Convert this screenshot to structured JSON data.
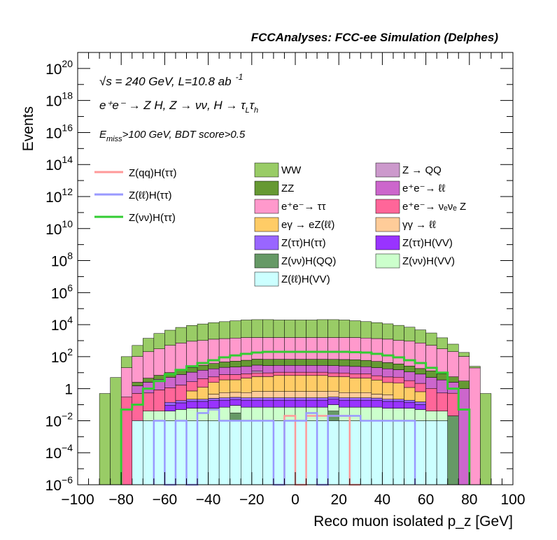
{
  "chart_data": {
    "type": "bar",
    "title": "FCCAnalyses: FCC-ee Simulation (Delphes)",
    "xlabel": "Reco muon isolated p_z [GeV]",
    "ylabel": "Events",
    "xlim": [
      -100,
      100
    ],
    "ylim": [
      1e-06,
      1e+21
    ],
    "log_y": true,
    "grid": false,
    "x_ticks": [
      -100,
      -80,
      -60,
      -40,
      -20,
      0,
      20,
      40,
      60,
      80,
      100
    ],
    "x_tick_labels": [
      "−100",
      "−80",
      "−60",
      "−40",
      "−20",
      "0",
      "20",
      "40",
      "60",
      "80",
      "100"
    ],
    "y_ticks": [
      {
        "value": 1e-06,
        "base": "10",
        "exp": "−6"
      },
      {
        "value": 0.0001,
        "base": "10",
        "exp": "−4"
      },
      {
        "value": 0.01,
        "base": "10",
        "exp": "−2"
      },
      {
        "value": 1,
        "base": "1",
        "exp": ""
      },
      {
        "value": 100.0,
        "base": "10",
        "exp": "2"
      },
      {
        "value": 10000.0,
        "base": "10",
        "exp": "4"
      },
      {
        "value": 1000000.0,
        "base": "10",
        "exp": "6"
      },
      {
        "value": 100000000.0,
        "base": "10",
        "exp": "8"
      },
      {
        "value": 10000000000.0,
        "base": "10",
        "exp": "10"
      },
      {
        "value": 1000000000000.0,
        "base": "10",
        "exp": "12"
      },
      {
        "value": 100000000000000.0,
        "base": "10",
        "exp": "14"
      },
      {
        "value": 1e+16,
        "base": "10",
        "exp": "16"
      },
      {
        "value": 1e+18,
        "base": "10",
        "exp": "18"
      },
      {
        "value": 1e+20,
        "base": "10",
        "exp": "20"
      }
    ],
    "annotations": {
      "line1": "√s = 240 GeV, L=10.8 ab",
      "line1_sup": "-1",
      "line2": "e⁺e⁻ → Z H, Z → νν, H → τ",
      "line2_sub1": "L",
      "line2_mid": "τ",
      "line2_sub2": "h",
      "line3": "E",
      "line3_sub": "miss",
      "line3_rest": ">100 GeV, BDT score>0.5"
    },
    "bin_edges": [
      -90,
      -85,
      -80,
      -75,
      -70,
      -65,
      -60,
      -55,
      -50,
      -45,
      -40,
      -35,
      -30,
      -25,
      -20,
      -15,
      -10,
      -5,
      0,
      5,
      10,
      15,
      20,
      25,
      30,
      35,
      40,
      45,
      50,
      55,
      60,
      65,
      70,
      75,
      80,
      85,
      90
    ],
    "stack": [
      {
        "name": "Z(ℓℓ)H(VV)",
        "color": "#ccffff",
        "values": [
          0,
          0,
          0,
          0.01,
          0.01,
          0.01,
          0.01,
          0.01,
          0.01,
          0.01,
          0.01,
          0.01,
          0.01,
          0.01,
          0.01,
          0.01,
          0.01,
          0.01,
          0.01,
          0.01,
          0.01,
          0.01,
          0.01,
          0.01,
          0.01,
          0.01,
          0.01,
          0.01,
          0.01,
          0.01,
          0.01,
          0.01,
          0,
          0,
          0,
          0
        ]
      },
      {
        "name": "Z(νν)H(QQ)",
        "color": "#669966",
        "values": [
          0,
          0,
          0,
          0,
          0,
          0,
          0,
          0,
          0,
          0,
          0,
          0,
          0.02,
          0,
          0,
          0,
          0,
          0,
          0,
          0,
          0,
          0.03,
          0,
          0,
          0,
          0,
          0,
          0,
          0,
          0,
          0,
          0,
          0.02,
          0,
          0,
          0
        ]
      },
      {
        "name": "Z(νν)H(VV)",
        "color": "#ccffcc",
        "values": [
          0,
          0,
          0,
          0,
          0.03,
          0.03,
          0.03,
          0.04,
          0.05,
          0.05,
          0.05,
          0.06,
          0.06,
          0.06,
          0.06,
          0.06,
          0.06,
          0.06,
          0.06,
          0.06,
          0.06,
          0.06,
          0.06,
          0.06,
          0.06,
          0.06,
          0.05,
          0.05,
          0.05,
          0.04,
          0.03,
          0.03,
          0,
          0,
          0,
          0
        ]
      },
      {
        "name": "Z(ττ)H(VV)",
        "color": "#9933ff",
        "values": [
          0,
          0,
          0,
          0,
          0,
          0,
          0.05,
          0.08,
          0.1,
          0.1,
          0.12,
          0.12,
          0.12,
          0.12,
          0.12,
          0.12,
          0.12,
          0.12,
          0.12,
          0.12,
          0.12,
          0.12,
          0.12,
          0.12,
          0.12,
          0.12,
          0.1,
          0.1,
          0.08,
          0.05,
          0,
          0,
          0,
          0,
          0,
          0
        ]
      },
      {
        "name": "Z(ττ)H(ττ)",
        "color": "#9966ff",
        "values": [
          0,
          0,
          0,
          0,
          0,
          0,
          0.05,
          0.05,
          0.06,
          0.06,
          0.07,
          0.08,
          0.08,
          0.08,
          0.08,
          0.08,
          0.08,
          0.08,
          0.08,
          0.08,
          0.08,
          0.08,
          0.08,
          0.08,
          0.08,
          0.07,
          0.06,
          0.06,
          0.05,
          0.05,
          0,
          0,
          0,
          0,
          0,
          0
        ]
      },
      {
        "name": "γγ → ℓℓ",
        "color": "#ffcc99",
        "values": [
          0,
          0,
          0,
          0,
          0,
          0,
          0,
          0,
          0,
          0,
          0.2,
          0.3,
          0.3,
          0.3,
          0.4,
          0.4,
          0.4,
          0.4,
          0.4,
          0.4,
          0.4,
          0.4,
          0.3,
          0.3,
          0.3,
          0.2,
          0.2,
          0,
          0,
          0,
          0,
          0,
          0,
          0,
          0,
          0
        ]
      },
      {
        "name": "eγ → eZ(ℓℓ)",
        "color": "#ffcc66",
        "values": [
          0,
          0,
          0,
          0,
          0,
          0,
          0,
          0,
          0.5,
          1,
          2,
          3,
          3,
          4,
          5,
          5,
          6,
          6,
          6,
          6,
          6,
          5,
          5,
          4,
          4,
          3,
          2,
          2,
          1,
          0.5,
          0,
          0,
          0,
          0,
          0,
          0
        ]
      },
      {
        "name": "e⁺e⁻ → νₑνₑ Z",
        "color": "#ff6699",
        "values": [
          0,
          0,
          0.3,
          0.5,
          0.5,
          0.8,
          1,
          1.5,
          2,
          3,
          3,
          4,
          4,
          4,
          4,
          4,
          4,
          4,
          4,
          4,
          4,
          4,
          4,
          4,
          4,
          3,
          3,
          3,
          2,
          1.5,
          1,
          0.5,
          0.5,
          0,
          0,
          0
        ]
      },
      {
        "name": "Z → QQ",
        "color": "#cc99cc",
        "values": [
          0,
          0,
          0,
          0,
          0,
          0,
          0,
          0,
          0,
          0,
          0,
          0,
          0,
          0,
          3,
          0,
          0,
          0,
          0,
          0,
          0,
          0,
          0,
          0,
          0,
          0,
          0,
          0,
          0,
          0,
          0,
          0,
          0,
          0,
          0,
          0
        ]
      },
      {
        "name": "e⁺e⁻ → ℓℓ",
        "color": "#cc66cc",
        "values": [
          0,
          0,
          0,
          1,
          2,
          3,
          4,
          6,
          8,
          10,
          12,
          14,
          15,
          16,
          17,
          18,
          18,
          18,
          18,
          18,
          18,
          18,
          17,
          16,
          15,
          14,
          12,
          10,
          8,
          6,
          4,
          3,
          2,
          1,
          0,
          0
        ]
      },
      {
        "name": "ZZ",
        "color": "#669933",
        "values": [
          0,
          0,
          0,
          1,
          2,
          3,
          5,
          8,
          10,
          15,
          20,
          25,
          30,
          35,
          40,
          40,
          40,
          40,
          40,
          40,
          40,
          40,
          40,
          40,
          35,
          30,
          25,
          20,
          15,
          10,
          8,
          5,
          3,
          2,
          0,
          0
        ]
      },
      {
        "name": "e⁺e⁻ → ττ",
        "color": "#ff99cc",
        "values": [
          0,
          0,
          20,
          100,
          200,
          300,
          500,
          700,
          900,
          1000,
          1200,
          1300,
          1400,
          1500,
          1500,
          1500,
          1500,
          1500,
          1500,
          1500,
          1500,
          1500,
          1500,
          1500,
          1400,
          1300,
          1200,
          1000,
          900,
          700,
          500,
          300,
          200,
          100,
          20,
          0
        ]
      },
      {
        "name": "WW",
        "color": "#99cc66",
        "values": [
          0.5,
          5,
          80,
          400,
          1200,
          2500,
          4000,
          6000,
          8000,
          10000,
          12000,
          14000,
          16000,
          18000,
          19000,
          19000,
          18000,
          18000,
          18000,
          18000,
          19000,
          19000,
          18000,
          16000,
          14000,
          12000,
          10000,
          8000,
          6000,
          4000,
          2500,
          1200,
          400,
          80,
          5,
          0.5
        ]
      }
    ],
    "series": [
      {
        "name": "Z(qq)H(ττ)",
        "color": "#ff9999",
        "edges": [
          -5,
          0,
          5,
          25,
          30
        ],
        "values": [
          0.02,
          0,
          0.02,
          0
        ]
      },
      {
        "name": "Z(ℓℓ)H(ττ)",
        "color": "#9999ff",
        "edges": [
          -65,
          -60,
          -55,
          -50,
          -45,
          -40,
          -35,
          -30,
          -25,
          -20,
          -15,
          -10,
          -5,
          0,
          5,
          10,
          15,
          20,
          25,
          30,
          35,
          40,
          45,
          50,
          55
        ],
        "values": [
          0.01,
          0,
          0.01,
          0,
          0.03,
          0.05,
          0.01,
          0.01,
          0.01,
          0.01,
          0.01,
          0,
          0.01,
          0.01,
          0.03,
          0,
          0.02,
          0.02,
          0.02,
          0.01,
          0.01,
          0.01,
          0.01,
          0.01
        ]
      },
      {
        "name": "Z(νν)H(ττ)",
        "color": "#33cc33",
        "edges": [
          -80,
          -75,
          -70,
          -65,
          -60,
          -55,
          -50,
          -45,
          -40,
          -35,
          -30,
          -25,
          -20,
          -15,
          -10,
          -5,
          0,
          5,
          10,
          15,
          20,
          25,
          30,
          35,
          40,
          45,
          50,
          55,
          60,
          65,
          70,
          75,
          80
        ],
        "values": [
          0.05,
          0.1,
          1,
          3,
          8,
          15,
          25,
          40,
          60,
          90,
          120,
          150,
          180,
          200,
          200,
          200,
          200,
          200,
          200,
          200,
          200,
          190,
          180,
          150,
          120,
          90,
          60,
          40,
          20,
          10,
          1,
          0.05
        ]
      }
    ],
    "legend": {
      "lines": [
        "Z(qq)H(ττ)",
        "Z(ℓℓ)H(ττ)",
        "Z(νν)H(ττ)"
      ],
      "col1": [
        "WW",
        "ZZ",
        "e⁺e⁻→ ττ",
        "eγ → eZ(ℓℓ)",
        "Z(ττ)H(ττ)",
        "Z(νν)H(QQ)",
        "Z(ℓℓ)H(VV)"
      ],
      "col2": [
        "Z → QQ",
        "e⁺e⁻→ ℓℓ",
        "e⁺e⁻→ νₑνₑ Z",
        "γγ → ℓℓ",
        "Z(ττ)H(VV)",
        "Z(νν)H(VV)"
      ]
    }
  }
}
